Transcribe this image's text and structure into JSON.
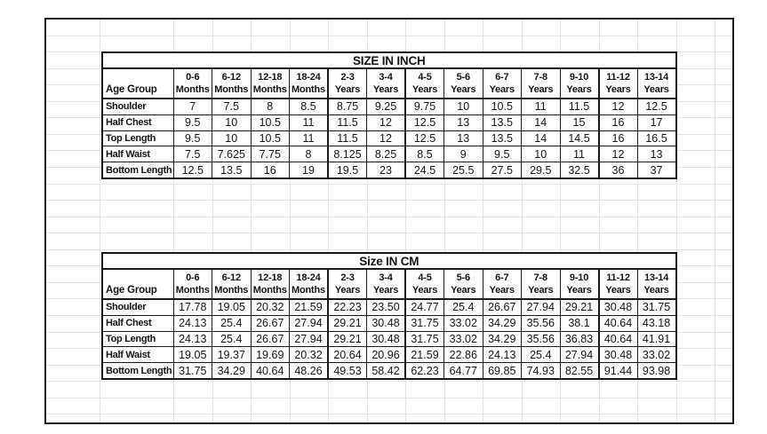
{
  "colors": {
    "background": "#ffffff",
    "table_border": "#1a1a1a",
    "gridline": "#e4e4e4",
    "text": "#141414"
  },
  "tables": [
    {
      "title": "SIZE IN INCH",
      "corner_label": "Age Group",
      "columns": [
        {
          "range": "0-6",
          "unit": "Months"
        },
        {
          "range": "6-12",
          "unit": "Months"
        },
        {
          "range": "12-18",
          "unit": "Months"
        },
        {
          "range": "18-24",
          "unit": "Months"
        },
        {
          "range": "2-3",
          "unit": "Years"
        },
        {
          "range": "3-4",
          "unit": "Years"
        },
        {
          "range": "4-5",
          "unit": "Years"
        },
        {
          "range": "5-6",
          "unit": "Years"
        },
        {
          "range": "6-7",
          "unit": "Years"
        },
        {
          "range": "7-8",
          "unit": "Years"
        },
        {
          "range": "9-10",
          "unit": "Years"
        },
        {
          "range": "11-12",
          "unit": "Years"
        },
        {
          "range": "13-14",
          "unit": "Years"
        }
      ],
      "rows": [
        {
          "label": "Shoulder",
          "values": [
            "7",
            "7.5",
            "8",
            "8.5",
            "8.75",
            "9.25",
            "9.75",
            "10",
            "10.5",
            "11",
            "11.5",
            "12",
            "12.5"
          ]
        },
        {
          "label": "Half Chest",
          "values": [
            "9.5",
            "10",
            "10.5",
            "11",
            "11.5",
            "12",
            "12.5",
            "13",
            "13.5",
            "14",
            "15",
            "16",
            "17"
          ]
        },
        {
          "label": "Top Length",
          "values": [
            "9.5",
            "10",
            "10.5",
            "11",
            "11.5",
            "12",
            "12.5",
            "13",
            "13.5",
            "14",
            "14.5",
            "16",
            "16.5"
          ]
        },
        {
          "label": "Half Waist",
          "values": [
            "7.5",
            "7.625",
            "7.75",
            "8",
            "8.125",
            "8.25",
            "8.5",
            "9",
            "9.5",
            "10",
            "11",
            "12",
            "13"
          ]
        },
        {
          "label": "Bottom Length",
          "values": [
            "12.5",
            "13.5",
            "16",
            "19",
            "19.5",
            "23",
            "24.5",
            "25.5",
            "27.5",
            "29.5",
            "32.5",
            "36",
            "37"
          ]
        }
      ]
    },
    {
      "title": "Size IN CM",
      "corner_label": "Age Group",
      "columns": [
        {
          "range": "0-6",
          "unit": "Months"
        },
        {
          "range": "6-12",
          "unit": "Months"
        },
        {
          "range": "12-18",
          "unit": "Months"
        },
        {
          "range": "18-24",
          "unit": "Months"
        },
        {
          "range": "2-3",
          "unit": "Years"
        },
        {
          "range": "3-4",
          "unit": "Years"
        },
        {
          "range": "4-5",
          "unit": "Years"
        },
        {
          "range": "5-6",
          "unit": "Years"
        },
        {
          "range": "6-7",
          "unit": "Years"
        },
        {
          "range": "7-8",
          "unit": "Years"
        },
        {
          "range": "9-10",
          "unit": "Years"
        },
        {
          "range": "11-12",
          "unit": "Years"
        },
        {
          "range": "13-14",
          "unit": "Years"
        }
      ],
      "rows": [
        {
          "label": "Shoulder",
          "values": [
            "17.78",
            "19.05",
            "20.32",
            "21.59",
            "22.23",
            "23.50",
            "24.77",
            "25.4",
            "26.67",
            "27.94",
            "29.21",
            "30.48",
            "31.75"
          ]
        },
        {
          "label": "Half Chest",
          "values": [
            "24.13",
            "25.4",
            "26.67",
            "27.94",
            "29.21",
            "30.48",
            "31.75",
            "33.02",
            "34.29",
            "35.56",
            "38.1",
            "40.64",
            "43.18"
          ]
        },
        {
          "label": "Top Length",
          "values": [
            "24.13",
            "25.4",
            "26.67",
            "27.94",
            "29.21",
            "30.48",
            "31.75",
            "33.02",
            "34.29",
            "35.56",
            "36.83",
            "40.64",
            "41.91"
          ]
        },
        {
          "label": "Half Waist",
          "values": [
            "19.05",
            "19.37",
            "19.69",
            "20.32",
            "20.64",
            "20.96",
            "21.59",
            "22.86",
            "24.13",
            "25.4",
            "27.94",
            "30.48",
            "33.02"
          ]
        },
        {
          "label": "Bottom Length",
          "values": [
            "31.75",
            "34.29",
            "40.64",
            "48.26",
            "49.53",
            "58.42",
            "62.23",
            "64.77",
            "69.85",
            "74.93",
            "82.55",
            "91.44",
            "93.98"
          ]
        }
      ]
    }
  ]
}
